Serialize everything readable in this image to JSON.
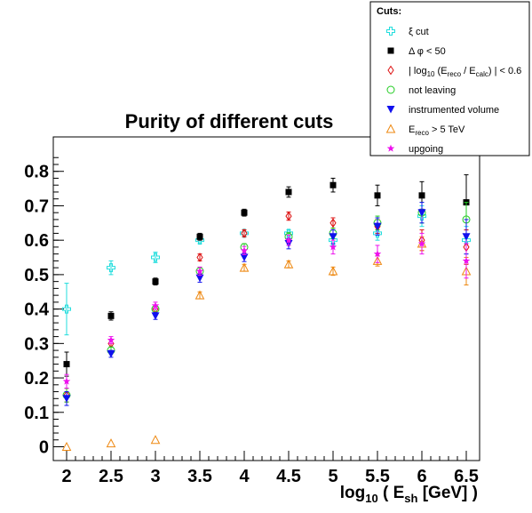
{
  "chart_data": {
    "type": "scatter",
    "title": "Purity of different cuts",
    "xlabel": "log10 ( Esh [GeV] )",
    "ylabel": "",
    "xlim": [
      1.85,
      6.65
    ],
    "ylim": [
      -0.04,
      0.9
    ],
    "x_ticks": [
      "2",
      "2.5",
      "3",
      "3.5",
      "4",
      "4.5",
      "5",
      "5.5",
      "6",
      "6.5"
    ],
    "y_ticks": [
      "0",
      "0.1",
      "0.2",
      "0.3",
      "0.4",
      "0.5",
      "0.6",
      "0.7",
      "0.8"
    ],
    "grid": false,
    "legend_placement": "top-right",
    "legend_title": "Cuts:",
    "series": [
      {
        "name": "ξ cut",
        "color": "#22dddd",
        "marker": "open-cross",
        "x": [
          2,
          2.5,
          3,
          3.5,
          4,
          4.5,
          5,
          5.5,
          6,
          6.5
        ],
        "y": [
          0.4,
          0.52,
          0.55,
          0.6,
          0.62,
          0.62,
          0.6,
          0.62,
          0.67,
          0.6
        ],
        "err": [
          0.075,
          0.02,
          0.015,
          0.01,
          0.01,
          0.01,
          0.015,
          0.02,
          0.03,
          0.04
        ]
      },
      {
        "name": "Δ φ < 50",
        "color": "#000000",
        "marker": "filled-square",
        "x": [
          2,
          2.5,
          3,
          3.5,
          4,
          4.5,
          5,
          5.5,
          6,
          6.5
        ],
        "y": [
          0.24,
          0.38,
          0.48,
          0.61,
          0.68,
          0.74,
          0.76,
          0.73,
          0.73,
          0.71
        ],
        "err": [
          0.035,
          0.012,
          0.01,
          0.01,
          0.01,
          0.015,
          0.02,
          0.03,
          0.04,
          0.08
        ]
      },
      {
        "name": "| log10 (Ereco / Ecalc) | < 0.6",
        "color": "#dd1111",
        "marker": "open-diamond",
        "x": [
          2,
          2.5,
          3,
          3.5,
          4,
          4.5,
          5,
          5.5,
          6,
          6.5
        ],
        "y": [
          0.15,
          0.3,
          0.4,
          0.55,
          0.62,
          0.67,
          0.65,
          0.64,
          0.6,
          0.58
        ],
        "err": [
          0.02,
          0.01,
          0.01,
          0.01,
          0.01,
          0.012,
          0.015,
          0.02,
          0.03,
          0.05
        ]
      },
      {
        "name": "not leaving",
        "color": "#22cc22",
        "marker": "open-circle",
        "x": [
          2,
          2.5,
          3,
          3.5,
          4,
          4.5,
          5,
          5.5,
          6,
          6.5
        ],
        "y": [
          0.15,
          0.28,
          0.4,
          0.51,
          0.58,
          0.61,
          0.62,
          0.65,
          0.68,
          0.66
        ],
        "err": [
          0.02,
          0.01,
          0.01,
          0.01,
          0.01,
          0.012,
          0.015,
          0.02,
          0.03,
          0.05
        ]
      },
      {
        "name": "instrumented volume",
        "color": "#1111ee",
        "marker": "filled-triangle-down",
        "x": [
          2,
          2.5,
          3,
          3.5,
          4,
          4.5,
          5,
          5.5,
          6,
          6.5
        ],
        "y": [
          0.14,
          0.27,
          0.38,
          0.49,
          0.55,
          0.59,
          0.61,
          0.64,
          0.68,
          0.61
        ],
        "err": [
          0.02,
          0.01,
          0.01,
          0.012,
          0.012,
          0.015,
          0.02,
          0.025,
          0.03,
          0.05
        ]
      },
      {
        "name": "Ereco > 5 TeV",
        "color": "#ee8811",
        "marker": "open-triangle-up",
        "x": [
          2,
          2.5,
          3,
          3.5,
          4,
          4.5,
          5,
          5.5,
          6,
          6.5
        ],
        "y": [
          0.0,
          0.01,
          0.02,
          0.44,
          0.52,
          0.53,
          0.51,
          0.54,
          0.59,
          0.51
        ],
        "err": [
          0,
          0,
          0,
          0.01,
          0.01,
          0.01,
          0.012,
          0.015,
          0.02,
          0.04
        ]
      },
      {
        "name": "upgoing",
        "color": "#ee11ee",
        "marker": "star",
        "x": [
          2,
          2.5,
          3,
          3.5,
          4,
          4.5,
          5,
          5.5,
          6,
          6.5
        ],
        "y": [
          0.19,
          0.31,
          0.41,
          0.51,
          0.57,
          0.6,
          0.58,
          0.56,
          0.59,
          0.54
        ],
        "err": [
          0.02,
          0.01,
          0.01,
          0.012,
          0.012,
          0.015,
          0.02,
          0.025,
          0.03,
          0.05
        ]
      }
    ]
  }
}
